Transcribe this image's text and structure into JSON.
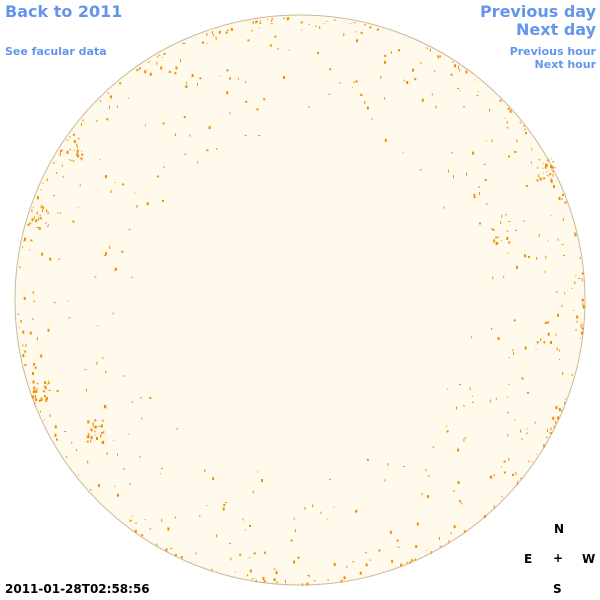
{
  "nav": {
    "back": "Back to 2011",
    "facular_data": "See facular data",
    "previous_day": "Previous day",
    "next_day": "Next day",
    "previous_hour": "Previous hour",
    "next_hour": "Next hour"
  },
  "timestamp": "2011-01-28T02:58:56",
  "compass": {
    "north": "N",
    "east": "E",
    "center": "+",
    "west": "W",
    "south": "S"
  }
}
